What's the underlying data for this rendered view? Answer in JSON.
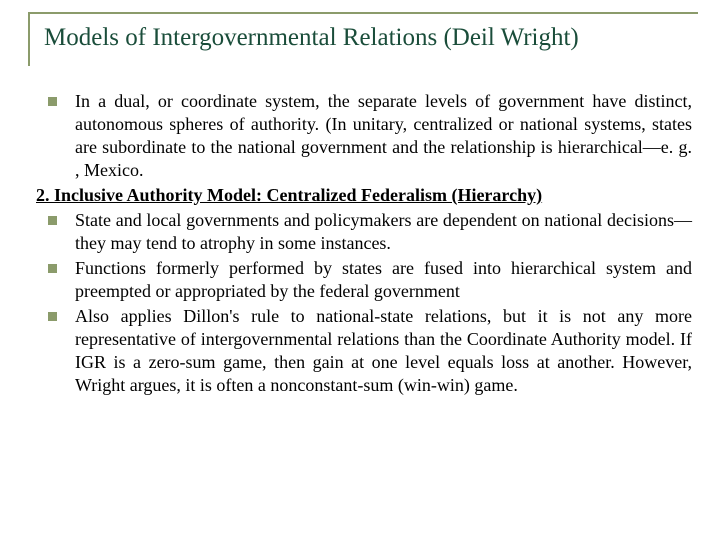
{
  "title": "Models of Intergovernmental Relations (Deil Wright)",
  "bullets": {
    "b1": "In a dual, or coordinate system, the separate levels of government have distinct, autonomous spheres of authority. (In unitary, centralized or national systems, states are subordinate to the national government and the relationship is hierarchical—e. g. , Mexico.",
    "heading": "2. Inclusive Authority Model: Centralized Federalism (Hierarchy)",
    "b2": "State and local governments and policymakers are dependent on national decisions—they may tend to atrophy in some instances.",
    "b3": "Functions formerly performed by states are fused into hierarchical system and preempted or appropriated by the federal government",
    "b4": "Also applies Dillon's rule to national-state relations, but it is not any more representative of intergovernmental relations than the Coordinate Authority model. If IGR is a zero-sum game, then gain at one level equals loss at another. However, Wright argues, it is often a nonconstant-sum (win-win) game."
  },
  "colors": {
    "accent": "#8b9b6b",
    "title": "#1a4d3a",
    "text": "#000000",
    "background": "#ffffff"
  },
  "typography": {
    "title_fontsize": 25,
    "body_fontsize": 18,
    "font_family": "Times New Roman"
  }
}
